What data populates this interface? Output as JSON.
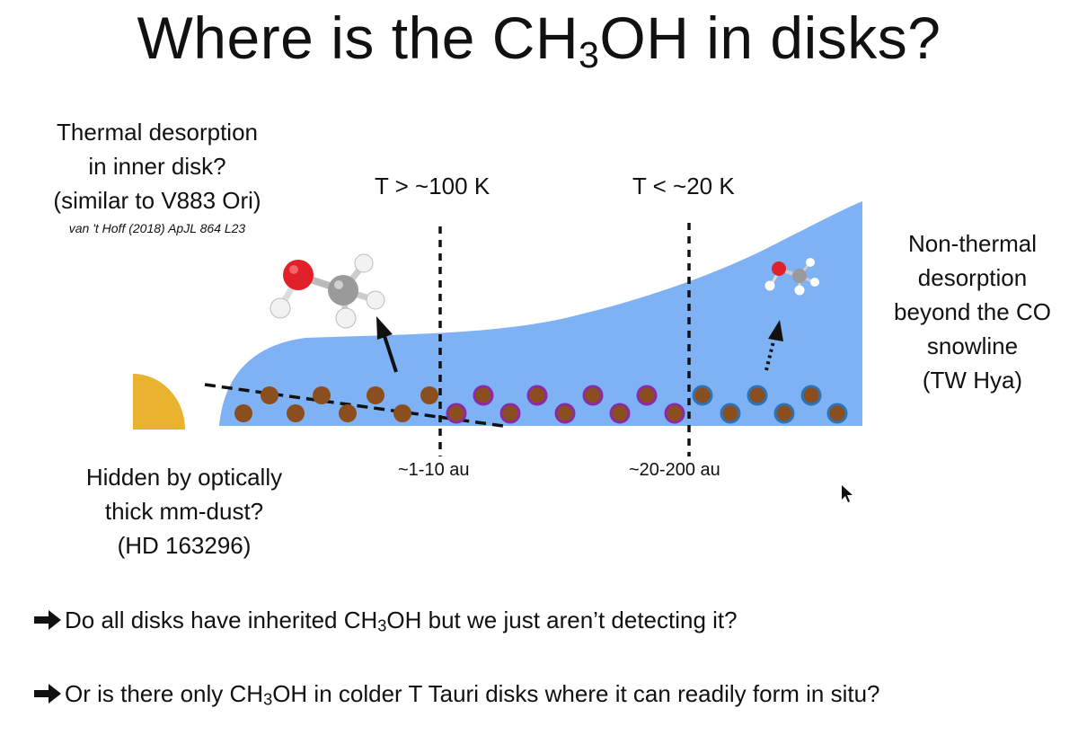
{
  "slide": {
    "title_pre": "Where is the CH",
    "title_sub": "3",
    "title_post": "OH in disks?"
  },
  "labels": {
    "thermal": [
      "Thermal desorption",
      "in inner disk?",
      "(similar to V883 Ori)"
    ],
    "thermal_cite": "van 't Hoff (2018) ApJL 864 L23",
    "nonthermal": [
      "Non-thermal",
      "desorption",
      "beyond the CO",
      "snowline",
      "(TW Hya)"
    ],
    "hidden": [
      "Hidden by optically",
      "thick mm-dust?",
      "(HD 163296)"
    ],
    "temp_hot": "T > ~100 K",
    "temp_cold": "T < ~20 K",
    "dist_inner": "~1-10 au",
    "dist_outer": "~20-200 au"
  },
  "bullets": [
    {
      "pre": "Do all disks have inherited CH",
      "sub": "3",
      "post": "OH but we just aren’t detecting it?"
    },
    {
      "pre": "Or is there only CH",
      "sub": "3",
      "post": "OH in colder T Tauri disks where it can readily form in situ?"
    }
  ],
  "colors": {
    "disk": "#7eb2f5",
    "star": "#e9b22f",
    "grain": "#8a4e1f",
    "mantle_mid": "#8b2aa5",
    "mantle_outer": "#2d73b5",
    "oxygen": "#e0202a",
    "carbon": "#9a9a9a",
    "hydrogen": "#f2f2f2"
  }
}
